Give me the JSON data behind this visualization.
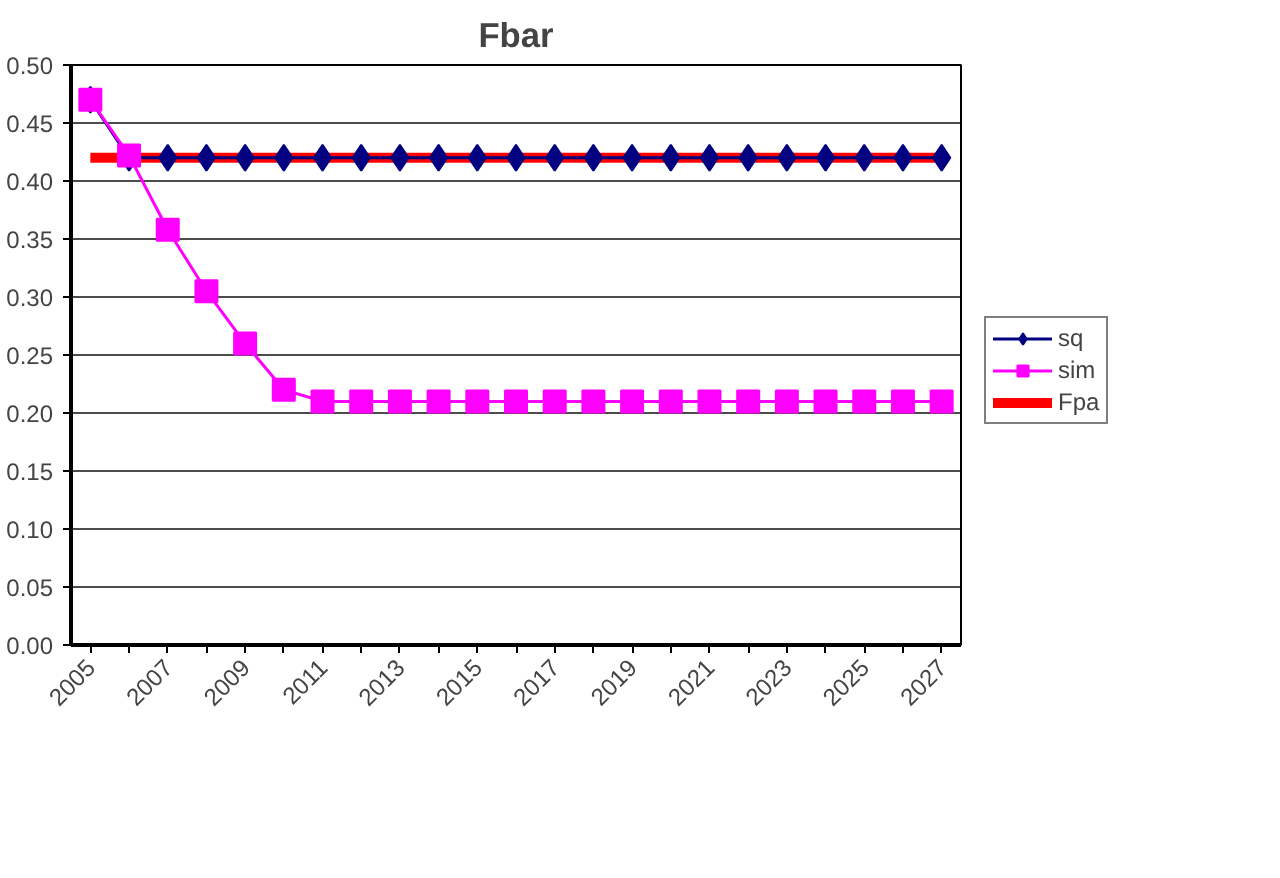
{
  "chart_data": {
    "type": "line",
    "title": "Fbar",
    "categories": [
      "2005",
      null,
      "2007",
      null,
      "2009",
      null,
      "2011",
      null,
      "2013",
      null,
      "2015",
      null,
      "2017",
      null,
      "2019",
      null,
      "2021",
      null,
      "2023",
      null,
      "2025",
      null,
      "2027"
    ],
    "series": [
      {
        "name": "sq",
        "color": "#000080",
        "marker": "diamond",
        "values": [
          0.47,
          0.42,
          0.42,
          0.42,
          0.42,
          0.42,
          0.42,
          0.42,
          0.42,
          0.42,
          0.42,
          0.42,
          0.42,
          0.42,
          0.42,
          0.42,
          0.42,
          0.42,
          0.42,
          0.42,
          0.42,
          0.42,
          0.42
        ]
      },
      {
        "name": "sim",
        "color": "#ff00ff",
        "marker": "square",
        "values": [
          0.47,
          0.422,
          0.358,
          0.305,
          0.26,
          0.22,
          0.21,
          0.21,
          0.21,
          0.21,
          0.21,
          0.21,
          0.21,
          0.21,
          0.21,
          0.21,
          0.21,
          0.21,
          0.21,
          0.21,
          0.21,
          0.21,
          0.21
        ]
      },
      {
        "name": "Fpa",
        "color": "#ff0000",
        "marker": "none",
        "values": [
          0.42,
          0.42,
          0.42,
          0.42,
          0.42,
          0.42,
          0.42,
          0.42,
          0.42,
          0.42,
          0.42,
          0.42,
          0.42,
          0.42,
          0.42,
          0.42,
          0.42,
          0.42,
          0.42,
          0.42,
          0.42,
          0.42,
          0.42
        ]
      }
    ],
    "ylim": [
      0,
      0.5
    ],
    "yticks": [
      {
        "value": 0,
        "label": "0.00"
      },
      {
        "value": 0.05,
        "label": "0.05"
      },
      {
        "value": 0.1,
        "label": "0.10"
      },
      {
        "value": 0.15,
        "label": "0.15"
      },
      {
        "value": 0.2,
        "label": "0.20"
      },
      {
        "value": 0.25,
        "label": "0.25"
      },
      {
        "value": 0.3,
        "label": "0.30"
      },
      {
        "value": 0.35,
        "label": "0.35"
      },
      {
        "value": 0.4,
        "label": "0.40"
      },
      {
        "value": 0.45,
        "label": "0.45"
      },
      {
        "value": 0.5,
        "label": "0.50"
      }
    ],
    "grid": "y",
    "legend": "right"
  }
}
